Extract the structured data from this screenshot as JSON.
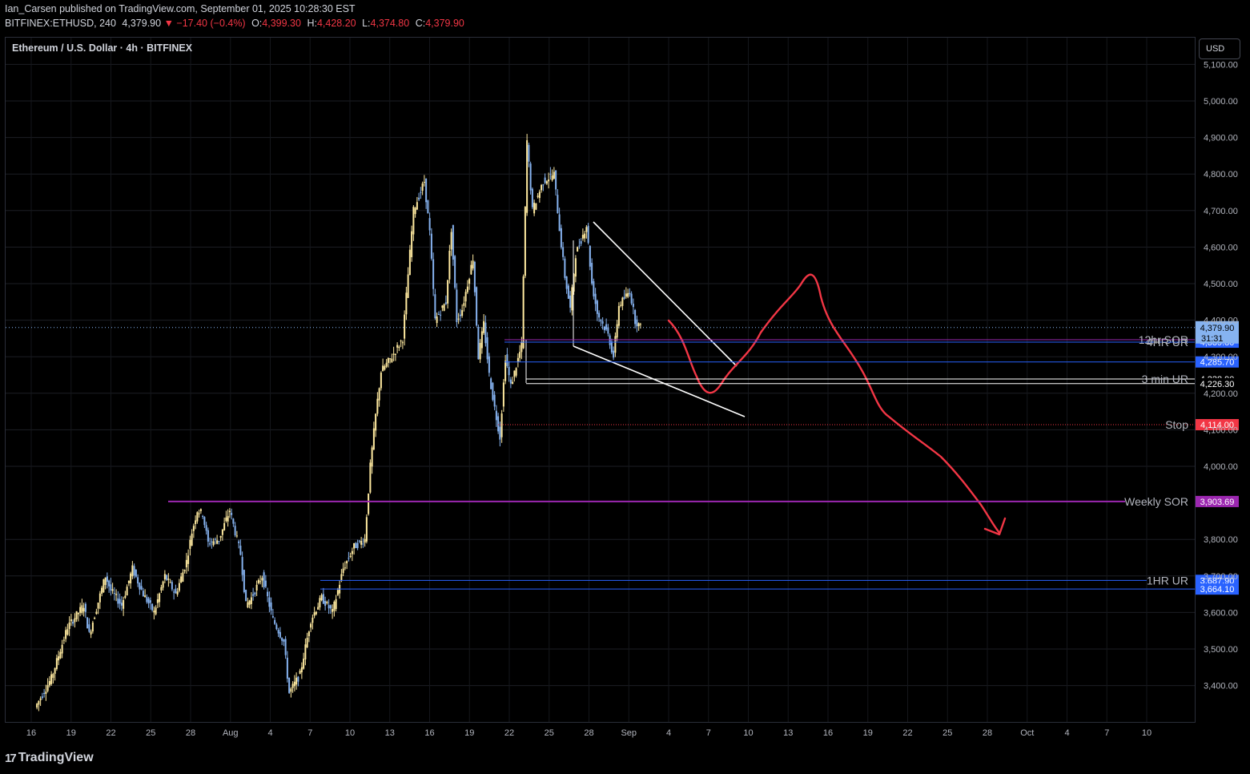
{
  "header": {
    "line1": "Ian_Carsen published on TradingView.com, September 01, 2025 10:28:30 EST",
    "ticker": "BITFINEX:ETHUSD, 240",
    "last": "4,379.90",
    "change": "▼ −17.40 (−0.4%)",
    "open_label": "O:",
    "open": "4,399.30",
    "high_label": "H:",
    "high": "4,428.20",
    "low_label": "L:",
    "low": "4,374.80",
    "close_label": "C:",
    "close": "4,379.90"
  },
  "symbol_title": "Ethereum / U.S. Dollar · 4h · BITFINEX",
  "currency_button": "USD",
  "brand": {
    "logo": "17",
    "name": "TradingView"
  },
  "colors": {
    "up": "#ffeaa0",
    "down": "#86b3f0",
    "purple": "#9c27b0",
    "red_curve": "#f23645",
    "blue_line": "#2962ff"
  },
  "chart_data": {
    "type": "candlestick",
    "ylim": [
      3340,
      5140
    ],
    "y_ticks": [
      "3,400.00",
      "3,500.00",
      "3,600.00",
      "3,700.00",
      "3,800.00",
      "4,000.00",
      "4,100.00",
      "4,200.00",
      "4,300.00",
      "4,400.00",
      "4,500.00",
      "4,600.00",
      "4,700.00",
      "4,800.00",
      "4,900.00",
      "5,000.00",
      "5,100.00"
    ],
    "x_ticks": [
      "16",
      "19",
      "22",
      "25",
      "28",
      "Aug",
      "4",
      "7",
      "10",
      "13",
      "16",
      "19",
      "22",
      "25",
      "28",
      "Sep",
      "4",
      "7",
      "10",
      "13",
      "16",
      "19",
      "22",
      "25",
      "28",
      "Oct",
      "4",
      "7",
      "10"
    ],
    "price_path": [
      [
        0,
        3340
      ],
      [
        3,
        3420
      ],
      [
        6,
        3560
      ],
      [
        9,
        3620
      ],
      [
        10,
        3540
      ],
      [
        13,
        3700
      ],
      [
        14,
        3660
      ],
      [
        16,
        3620
      ],
      [
        18,
        3720
      ],
      [
        20,
        3650
      ],
      [
        22,
        3600
      ],
      [
        24,
        3700
      ],
      [
        26,
        3650
      ],
      [
        28,
        3740
      ],
      [
        29,
        3820
      ],
      [
        30,
        3880
      ],
      [
        31,
        3870
      ],
      [
        32,
        3790
      ],
      [
        34,
        3800
      ],
      [
        36,
        3880
      ],
      [
        38,
        3760
      ],
      [
        39,
        3620
      ],
      [
        40,
        3640
      ],
      [
        42,
        3700
      ],
      [
        44,
        3580
      ],
      [
        46,
        3520
      ],
      [
        47,
        3380
      ],
      [
        49,
        3430
      ],
      [
        51,
        3580
      ],
      [
        53,
        3640
      ],
      [
        55,
        3600
      ],
      [
        57,
        3720
      ],
      [
        59,
        3780
      ],
      [
        61,
        3800
      ],
      [
        62,
        4000
      ],
      [
        63,
        4140
      ],
      [
        64,
        4260
      ],
      [
        66,
        4300
      ],
      [
        68,
        4350
      ],
      [
        70,
        4700
      ],
      [
        72,
        4780
      ],
      [
        73,
        4640
      ],
      [
        74,
        4400
      ],
      [
        76,
        4450
      ],
      [
        77,
        4650
      ],
      [
        78,
        4400
      ],
      [
        79,
        4430
      ],
      [
        81,
        4570
      ],
      [
        82,
        4300
      ],
      [
        83,
        4390
      ],
      [
        84,
        4250
      ],
      [
        85,
        4160
      ],
      [
        86,
        4080
      ],
      [
        87,
        4300
      ],
      [
        88,
        4220
      ],
      [
        90,
        4330
      ],
      [
        91,
        4890
      ],
      [
        92,
        4700
      ],
      [
        94,
        4780
      ],
      [
        96,
        4800
      ],
      [
        97,
        4650
      ],
      [
        98,
        4520
      ],
      [
        99,
        4430
      ],
      [
        100,
        4580
      ],
      [
        102,
        4660
      ],
      [
        103,
        4500
      ],
      [
        104,
        4420
      ],
      [
        106,
        4360
      ],
      [
        107,
        4300
      ],
      [
        108,
        4440
      ],
      [
        110,
        4480
      ],
      [
        111,
        4400
      ],
      [
        112,
        4380
      ]
    ],
    "ohlc_last": {
      "open": 4399.3,
      "high": 4428.2,
      "low": 4374.8,
      "close": 4379.9
    },
    "levels": [
      {
        "name": "12hr SOR",
        "value": 4346.4,
        "tag": "4,346.40",
        "tag_color": "#f23645",
        "line_color": "#9c27b0"
      },
      {
        "name": "4HR UR",
        "value": 4339.8,
        "tag": "4,339.80",
        "tag_color": "#2962ff",
        "line_color": "#2962ff"
      },
      {
        "name": "",
        "value": 4285.7,
        "tag": "4,285.70",
        "tag_color": "#2962ff",
        "line_color": "#2962ff"
      },
      {
        "name": "3 min UR",
        "value": 4238.9,
        "tag": "4,238.90",
        "tag_color": "#000000",
        "line_color": "#ffffff"
      },
      {
        "name": "",
        "value": 4226.3,
        "tag": "4,226.30",
        "tag_color": "#000000",
        "line_color": "#ffffff"
      },
      {
        "name": "Stop",
        "value": 4114.0,
        "tag": "4,114.00",
        "tag_color": "#f23645",
        "line_color": "#f23645"
      },
      {
        "name": "Weekly SOR",
        "value": 3903.69,
        "tag": "3,903.69",
        "tag_color": "#9c27b0",
        "line_color": "#9c27b0"
      },
      {
        "name": "1HR UR",
        "value": 3687.9,
        "tag": "3,687.90",
        "tag_color": "#2962ff",
        "line_color": "#2962ff"
      },
      {
        "name": "",
        "value": 3664.1,
        "tag": "3,664.10",
        "tag_color": "#2962ff",
        "line_color": "#2962ff"
      }
    ],
    "current_price": {
      "tag": "4,379.90",
      "countdown": "31:31"
    }
  }
}
